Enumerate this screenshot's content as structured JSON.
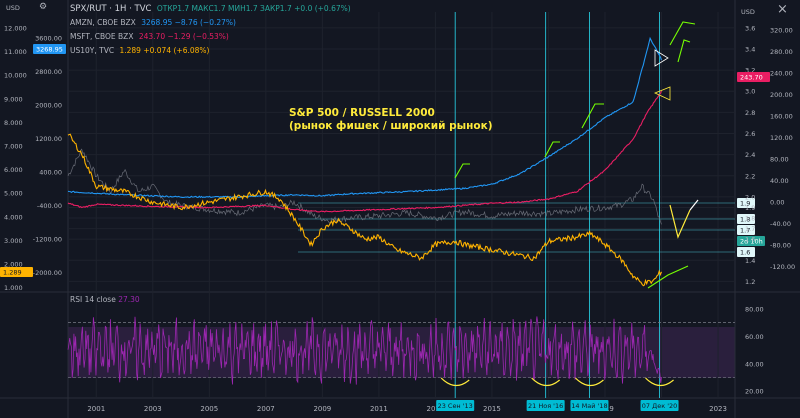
{
  "header": {
    "main_symbol": "SPX/RUT · 1H · TVC",
    "ohlc": "ОТКР1.7 МАКС1.7 МИН1.7 ЗАКР1.7 +0.0 (+0.67%)",
    "lines": [
      {
        "name": "AMZN, CBOE BZX",
        "value": "3268.95 −8.76 (−0.27%)",
        "color": "#2196f3"
      },
      {
        "name": "MSFT, CBOE BZX",
        "value": "243.70 −1.29 (−0.53%)",
        "color": "#e91e63"
      },
      {
        "name": "US10Y, TVC",
        "value": "1.289 +0.074 (+6.08%)",
        "color": "#ffb300"
      }
    ]
  },
  "annotation": {
    "line1": "S&P 500 / RUSSELL 2000",
    "line2": "(рынок фишек / широкий рынок)"
  },
  "currency_left": "USD",
  "currency_right": "USD",
  "rsi_label": "RSI 14 close",
  "rsi_value": "27.30",
  "chart_data": [
    {
      "type": "line",
      "x_ticks": [
        "2001",
        "2003",
        "2005",
        "2007",
        "2009",
        "2011",
        "2013",
        "2015",
        "2017",
        "2019",
        "2021",
        "2023"
      ],
      "series": [
        {
          "name": "SPX/RUT",
          "color": "#787b86",
          "x": [
            2000.0,
            2000.5,
            2001.0,
            2001.5,
            2002.0,
            2002.5,
            2003.0,
            2003.5,
            2004.0,
            2005.0,
            2006.0,
            2007.0,
            2007.5,
            2008.0,
            2008.7,
            2009.2,
            2010.0,
            2011.0,
            2012.0,
            2013.0,
            2014.0,
            2015.0,
            2016.0,
            2017.0,
            2018.0,
            2019.0,
            2019.5,
            2020.0,
            2020.3,
            2020.7,
            2021.0
          ],
          "values": [
            2.2,
            2.45,
            2.2,
            2.05,
            2.25,
            2.05,
            2.1,
            1.95,
            1.92,
            1.88,
            1.85,
            1.92,
            1.9,
            1.95,
            1.82,
            1.78,
            1.8,
            1.82,
            1.85,
            1.8,
            1.86,
            1.82,
            1.85,
            1.84,
            1.88,
            1.9,
            1.92,
            1.98,
            2.1,
            1.98,
            1.72
          ]
        },
        {
          "name": "AMZN",
          "color": "#2196f3",
          "x": [
            2000,
            2002,
            2004,
            2006,
            2008,
            2009,
            2010,
            2012,
            2014,
            2015,
            2016,
            2017,
            2018,
            2019,
            2020,
            2020.3,
            2020.6,
            2021
          ],
          "values": [
            2.05,
            2.02,
            2.0,
            2.0,
            2.02,
            2.01,
            2.03,
            2.05,
            2.08,
            2.12,
            2.22,
            2.38,
            2.55,
            2.75,
            2.9,
            3.2,
            3.5,
            3.3
          ]
        },
        {
          "name": "MSFT",
          "color": "#e91e63",
          "x": [
            2000,
            2000.5,
            2001,
            2002,
            2003,
            2005,
            2007,
            2008,
            2009,
            2011,
            2013,
            2015,
            2016,
            2017,
            2018,
            2019,
            2020,
            2020.5,
            2021
          ],
          "values": [
            1.94,
            1.9,
            1.93,
            1.92,
            1.91,
            1.9,
            1.92,
            1.88,
            1.86,
            1.88,
            1.9,
            1.94,
            1.95,
            1.98,
            2.05,
            2.25,
            2.55,
            2.8,
            3.0
          ]
        },
        {
          "name": "US10Y",
          "color": "#ffb300",
          "x": [
            2000,
            2000.5,
            2001,
            2002,
            2003,
            2004,
            2005,
            2006,
            2007,
            2007.5,
            2008,
            2008.6,
            2009.0,
            2009.5,
            2010,
            2010.5,
            2011,
            2011.6,
            2012.5,
            2013,
            2013.7,
            2014,
            2015,
            2016.5,
            2017,
            2018,
            2018.5,
            2019,
            2019.6,
            2020,
            2020.3,
            2020.7,
            2021
          ],
          "values": [
            2.6,
            2.4,
            2.1,
            2.05,
            1.95,
            1.9,
            1.95,
            2.0,
            2.05,
            1.98,
            1.8,
            1.55,
            1.7,
            1.78,
            1.7,
            1.6,
            1.62,
            1.5,
            1.42,
            1.55,
            1.58,
            1.55,
            1.5,
            1.42,
            1.58,
            1.62,
            1.65,
            1.55,
            1.4,
            1.25,
            1.18,
            1.2,
            1.3
          ]
        }
      ],
      "x_range": [
        2000.0,
        2023.6
      ],
      "right_axis_ticks": [
        "3.6",
        "3.4",
        "3.2",
        "3.0",
        "2.8",
        "2.6",
        "2.4",
        "2.2",
        "2.0",
        "1.9",
        "1.8",
        "1.7",
        "1.6",
        "1.4",
        "1.2"
      ],
      "amzn_axis_ticks": [
        "3600.00",
        "2800.00",
        "2000.00",
        "1200.00",
        "400.00",
        "-400.00",
        "-1200.00",
        "-2000.00"
      ],
      "left_axis_ticks": [
        "12.000",
        "11.000",
        "10.000",
        "9.000",
        "8.000",
        "7.000",
        "6.000",
        "5.000",
        "4.000",
        "3.000",
        "2.000",
        "1.000"
      ],
      "msft_axis_ticks": [
        "320.00",
        "280.00",
        "240.00",
        "200.00",
        "160.00",
        "120.00",
        "80.00",
        "40.00",
        "0.00",
        "-40.00",
        "-80.00",
        "-120.00"
      ],
      "h_levels": [
        "1.9",
        "1.8",
        "1.7",
        "2d 10h",
        "1.6"
      ],
      "price_tags": [
        {
          "label": "3268.95",
          "color": "#2196f3"
        },
        {
          "label": "1.289",
          "color": "#ffb300"
        },
        {
          "label": "243.70",
          "color": "#e91e63"
        }
      ]
    },
    {
      "type": "line",
      "name": "RSI 14 close",
      "y_ticks": [
        "80.00",
        "60.00",
        "40.00",
        "20.00"
      ],
      "ylim": [
        15,
        88
      ],
      "bands": [
        30,
        70
      ],
      "vertical_markers": [
        {
          "x": 2013.7,
          "label": "23 Сен '13"
        },
        {
          "x": 2016.9,
          "label": "21 Ноя '16"
        },
        {
          "x": 2018.45,
          "label": "14 Май '18"
        },
        {
          "x": 2020.93,
          "label": "07 Дек '20"
        }
      ]
    }
  ]
}
